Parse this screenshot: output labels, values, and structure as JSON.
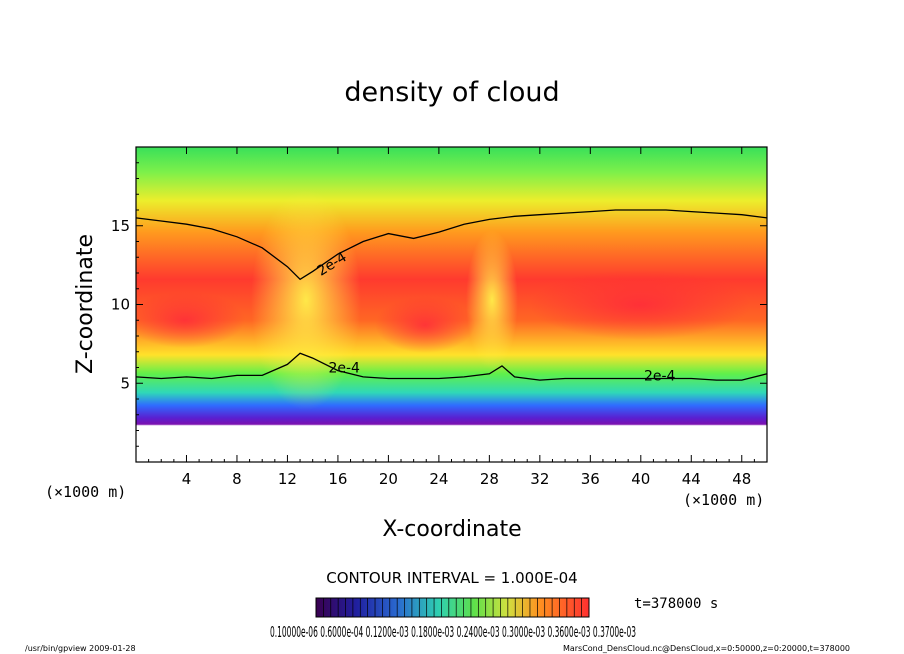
{
  "chart_data": {
    "type": "heatmap",
    "title": "density of cloud",
    "xlabel": "X-coordinate",
    "ylabel": "Z-coordinate",
    "x_unit": "(×1000 m)",
    "y_unit": "(×1000 m)",
    "xlim": [
      0,
      50
    ],
    "ylim": [
      0,
      20
    ],
    "x_ticks": [
      4,
      8,
      12,
      16,
      20,
      24,
      28,
      32,
      36,
      40,
      44,
      48
    ],
    "y_ticks": [
      5,
      10,
      15
    ],
    "contour_level_label": "2e-4",
    "contour_interval_text": "CONTOUR INTERVAL = 1.000E-04",
    "time_label": "t=378000 s",
    "colorbar_tick_text": "0.10000e-06 0.6000e-04 0.1200e-03 0.1800e-03 0.2400e-03 0.3000e-03 0.3600e-03 0.3700e-03",
    "colorbar_range": [
      1e-07,
      0.00037
    ],
    "colors": {
      "background": "#ffffff",
      "low": "#6600aa",
      "mid": "#33dd33",
      "high": "#ff3333"
    },
    "upper_contour_2e4": {
      "x": [
        0,
        2,
        4,
        6,
        8,
        10,
        12,
        13,
        14,
        16,
        18,
        20,
        22,
        24,
        26,
        28,
        30,
        32,
        34,
        36,
        38,
        40,
        42,
        44,
        46,
        48,
        50
      ],
      "z": [
        15.5,
        15.3,
        15.1,
        14.8,
        14.3,
        13.6,
        12.4,
        11.6,
        12.1,
        13.2,
        14.0,
        14.5,
        14.2,
        14.6,
        15.1,
        15.4,
        15.6,
        15.7,
        15.8,
        15.9,
        16.0,
        16.0,
        16.0,
        15.9,
        15.8,
        15.7,
        15.5
      ]
    },
    "lower_contour_2e4": {
      "x": [
        0,
        2,
        4,
        6,
        8,
        10,
        12,
        13,
        14,
        16,
        18,
        20,
        22,
        24,
        26,
        28,
        29,
        30,
        32,
        34,
        36,
        38,
        40,
        42,
        44,
        46,
        48,
        50
      ],
      "z": [
        5.4,
        5.3,
        5.4,
        5.3,
        5.5,
        5.5,
        6.2,
        6.9,
        6.6,
        5.8,
        5.4,
        5.3,
        5.3,
        5.3,
        5.4,
        5.6,
        6.1,
        5.4,
        5.2,
        5.3,
        5.3,
        5.3,
        5.3,
        5.3,
        5.3,
        5.2,
        5.2,
        5.6
      ]
    }
  },
  "footer": {
    "left": "/usr/bin/gpview   2009-01-28",
    "right": "MarsCond_DensCloud.nc@DensCloud,x=0:50000,z=0:20000,t=378000"
  }
}
